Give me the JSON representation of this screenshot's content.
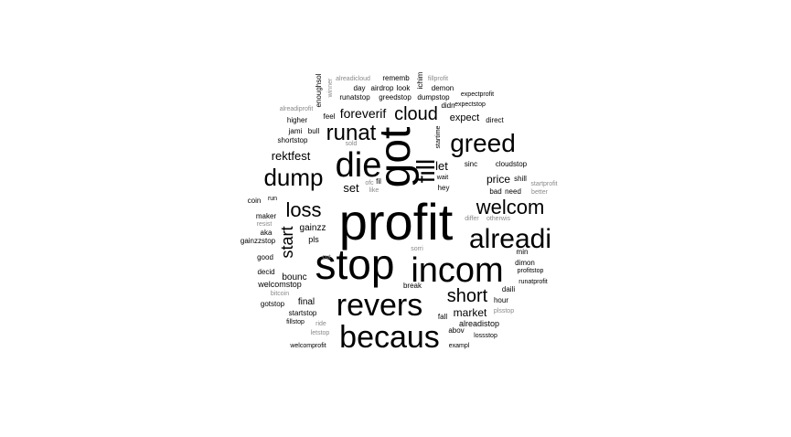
{
  "wordcloud": {
    "colors": {
      "strong": "#000000",
      "faded": "#8a8a8a"
    },
    "words": [
      {
        "text": "profit"
      },
      {
        "text": "got"
      },
      {
        "text": "stop"
      },
      {
        "text": "incom"
      },
      {
        "text": "die"
      },
      {
        "text": "revers"
      },
      {
        "text": "becaus"
      },
      {
        "text": "alreadi"
      },
      {
        "text": "greed"
      },
      {
        "text": "fill"
      },
      {
        "text": "dump"
      },
      {
        "text": "runat"
      },
      {
        "text": "loss"
      },
      {
        "text": "welcom"
      },
      {
        "text": "cloud"
      },
      {
        "text": "short"
      },
      {
        "text": "start"
      },
      {
        "text": "foreverif"
      },
      {
        "text": "rektfest"
      },
      {
        "text": "let"
      },
      {
        "text": "set"
      },
      {
        "text": "price"
      },
      {
        "text": "market"
      },
      {
        "text": "expect"
      },
      {
        "text": "gainzz"
      },
      {
        "text": "bounc"
      },
      {
        "text": "final"
      },
      {
        "text": "welcomstop"
      },
      {
        "text": "pls"
      },
      {
        "text": "alreadistop"
      },
      {
        "text": "cloudstop"
      },
      {
        "text": "sinc"
      },
      {
        "text": "higher"
      },
      {
        "text": "shortstop"
      },
      {
        "text": "jami"
      },
      {
        "text": "bull"
      },
      {
        "text": "feel"
      },
      {
        "text": "enoughsol"
      },
      {
        "text": "runatstop"
      },
      {
        "text": "greedstop"
      },
      {
        "text": "dumpstop"
      },
      {
        "text": "airdrop"
      },
      {
        "text": "day"
      },
      {
        "text": "look"
      },
      {
        "text": "demon"
      },
      {
        "text": "rememb"
      },
      {
        "text": "alreadicloud"
      },
      {
        "text": "ichim"
      },
      {
        "text": "fillprofit"
      },
      {
        "text": "expectprofit"
      },
      {
        "text": "expectstop"
      },
      {
        "text": "didn"
      },
      {
        "text": "direct"
      },
      {
        "text": "alreadiprofit"
      },
      {
        "text": "winner"
      },
      {
        "text": "sold"
      },
      {
        "text": "startime"
      },
      {
        "text": "wait"
      },
      {
        "text": "hey"
      },
      {
        "text": "shill"
      },
      {
        "text": "startprofit"
      },
      {
        "text": "better"
      },
      {
        "text": "bad"
      },
      {
        "text": "need"
      },
      {
        "text": "ofc"
      },
      {
        "text": "fil"
      },
      {
        "text": "like"
      },
      {
        "text": "coin"
      },
      {
        "text": "run"
      },
      {
        "text": "maker"
      },
      {
        "text": "resist"
      },
      {
        "text": "aka"
      },
      {
        "text": "gainzzstop"
      },
      {
        "text": "good"
      },
      {
        "text": "decid"
      },
      {
        "text": "bitcoin"
      },
      {
        "text": "gotstop"
      },
      {
        "text": "startstop"
      },
      {
        "text": "fillstop"
      },
      {
        "text": "ride"
      },
      {
        "text": "letstop"
      },
      {
        "text": "welcomprofit"
      },
      {
        "text": "cut"
      },
      {
        "text": "sorri"
      },
      {
        "text": "break"
      },
      {
        "text": "fall"
      },
      {
        "text": "abov"
      },
      {
        "text": "exampl"
      },
      {
        "text": "lossstop"
      },
      {
        "text": "plsstop"
      },
      {
        "text": "hour"
      },
      {
        "text": "daili"
      },
      {
        "text": "runatprofit"
      },
      {
        "text": "profitstop"
      },
      {
        "text": "dimon"
      },
      {
        "text": "min"
      },
      {
        "text": "differ"
      },
      {
        "text": "otherwis"
      }
    ]
  }
}
